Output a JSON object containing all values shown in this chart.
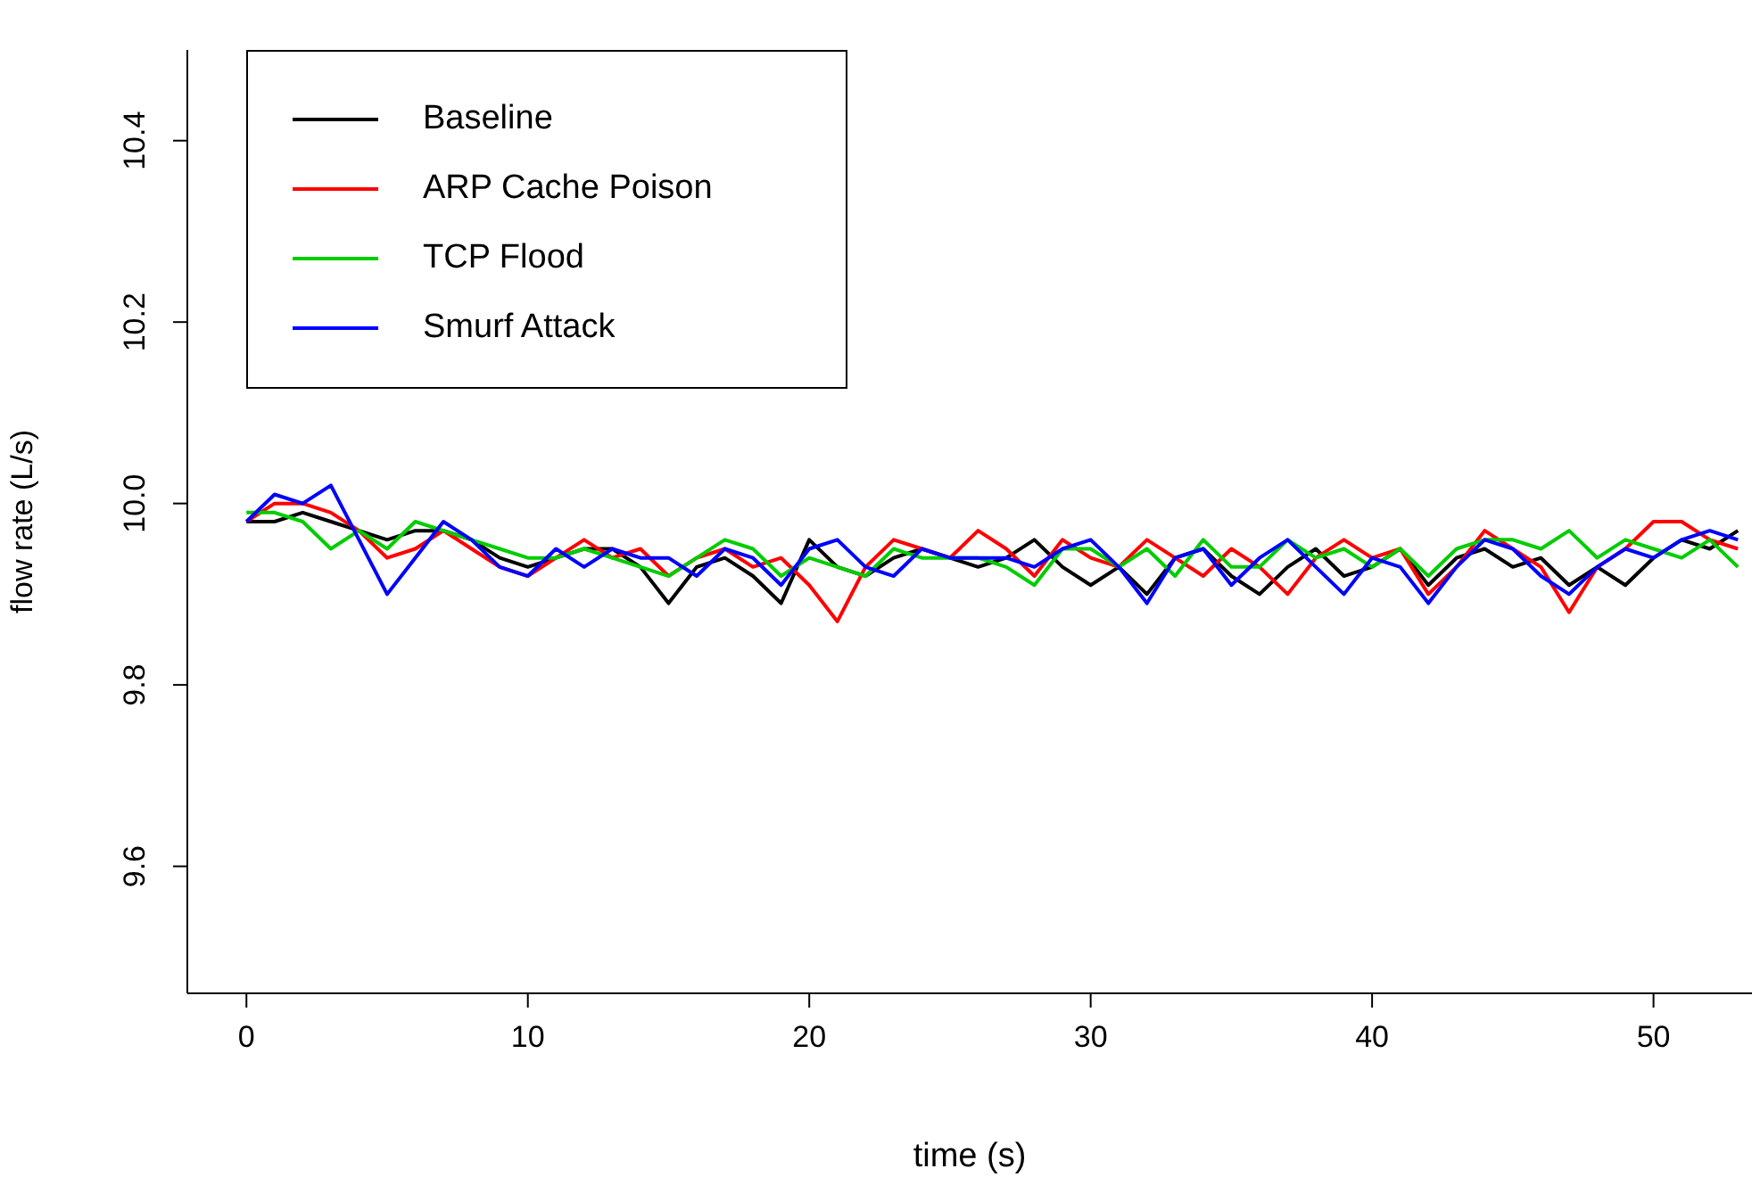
{
  "chart_data": {
    "type": "line",
    "xlabel": "time (s)",
    "ylabel": "flow rate (L/s)",
    "x": [
      0,
      1,
      2,
      3,
      4,
      5,
      6,
      7,
      8,
      9,
      10,
      11,
      12,
      13,
      14,
      15,
      16,
      17,
      18,
      19,
      20,
      21,
      22,
      23,
      24,
      25,
      26,
      27,
      28,
      29,
      30,
      31,
      32,
      33,
      34,
      35,
      36,
      37,
      38,
      39,
      40,
      41,
      42,
      43,
      44,
      45,
      46,
      47,
      48,
      49,
      50,
      51,
      52,
      53
    ],
    "xlim": [
      -2.1,
      53.5
    ],
    "xticks": [
      0,
      10,
      20,
      30,
      40,
      50
    ],
    "ylim": [
      9.46,
      10.5
    ],
    "yticks": [
      9.6,
      9.8,
      {
        "value": 10.0,
        "label": "10.0"
      },
      10.2,
      10.4
    ],
    "grid": false,
    "legend": "top left",
    "marker": "none",
    "line_style": "solid",
    "series": [
      {
        "name": "Baseline",
        "color": "#000000",
        "values": [
          9.98,
          9.98,
          9.99,
          9.98,
          9.97,
          9.96,
          9.97,
          9.97,
          9.96,
          9.94,
          9.93,
          9.94,
          9.95,
          9.95,
          9.93,
          9.89,
          9.93,
          9.94,
          9.92,
          9.89,
          9.96,
          9.93,
          9.92,
          9.94,
          9.95,
          9.94,
          9.93,
          9.94,
          9.96,
          9.93,
          9.91,
          9.93,
          9.9,
          9.94,
          9.95,
          9.92,
          9.9,
          9.93,
          9.95,
          9.92,
          9.93,
          9.95,
          9.91,
          9.94,
          9.95,
          9.93,
          9.94,
          9.91,
          9.93,
          9.91,
          9.94,
          9.96,
          9.95,
          9.97
        ]
      },
      {
        "name": "ARP Cache Poison",
        "color": "#ff0000",
        "values": [
          9.98,
          10.0,
          10.0,
          9.99,
          9.97,
          9.94,
          9.95,
          9.97,
          9.95,
          9.93,
          9.92,
          9.94,
          9.96,
          9.94,
          9.95,
          9.92,
          9.94,
          9.95,
          9.93,
          9.94,
          9.91,
          9.87,
          9.93,
          9.96,
          9.95,
          9.94,
          9.97,
          9.95,
          9.92,
          9.96,
          9.94,
          9.93,
          9.96,
          9.94,
          9.92,
          9.95,
          9.93,
          9.9,
          9.94,
          9.96,
          9.94,
          9.95,
          9.9,
          9.93,
          9.97,
          9.95,
          9.93,
          9.88,
          9.93,
          9.95,
          9.98,
          9.98,
          9.96,
          9.95
        ]
      },
      {
        "name": "TCP Flood",
        "color": "#00cd00",
        "values": [
          9.99,
          9.99,
          9.98,
          9.95,
          9.97,
          9.95,
          9.98,
          9.97,
          9.96,
          9.95,
          9.94,
          9.94,
          9.95,
          9.94,
          9.93,
          9.92,
          9.94,
          9.96,
          9.95,
          9.92,
          9.94,
          9.93,
          9.92,
          9.95,
          9.94,
          9.94,
          9.94,
          9.93,
          9.91,
          9.95,
          9.95,
          9.93,
          9.95,
          9.92,
          9.96,
          9.93,
          9.93,
          9.96,
          9.94,
          9.95,
          9.93,
          9.95,
          9.92,
          9.95,
          9.96,
          9.96,
          9.95,
          9.97,
          9.94,
          9.96,
          9.95,
          9.94,
          9.96,
          9.93
        ]
      },
      {
        "name": "Smurf Attack",
        "color": "#0000ff",
        "values": [
          9.98,
          10.01,
          10.0,
          10.02,
          9.96,
          9.9,
          9.94,
          9.98,
          9.96,
          9.93,
          9.92,
          9.95,
          9.93,
          9.95,
          9.94,
          9.94,
          9.92,
          9.95,
          9.94,
          9.91,
          9.95,
          9.96,
          9.93,
          9.92,
          9.95,
          9.94,
          9.94,
          9.94,
          9.93,
          9.95,
          9.96,
          9.93,
          9.89,
          9.94,
          9.95,
          9.91,
          9.94,
          9.96,
          9.93,
          9.9,
          9.94,
          9.93,
          9.89,
          9.93,
          9.96,
          9.95,
          9.92,
          9.9,
          9.93,
          9.95,
          9.94,
          9.96,
          9.97,
          9.96
        ]
      }
    ]
  }
}
